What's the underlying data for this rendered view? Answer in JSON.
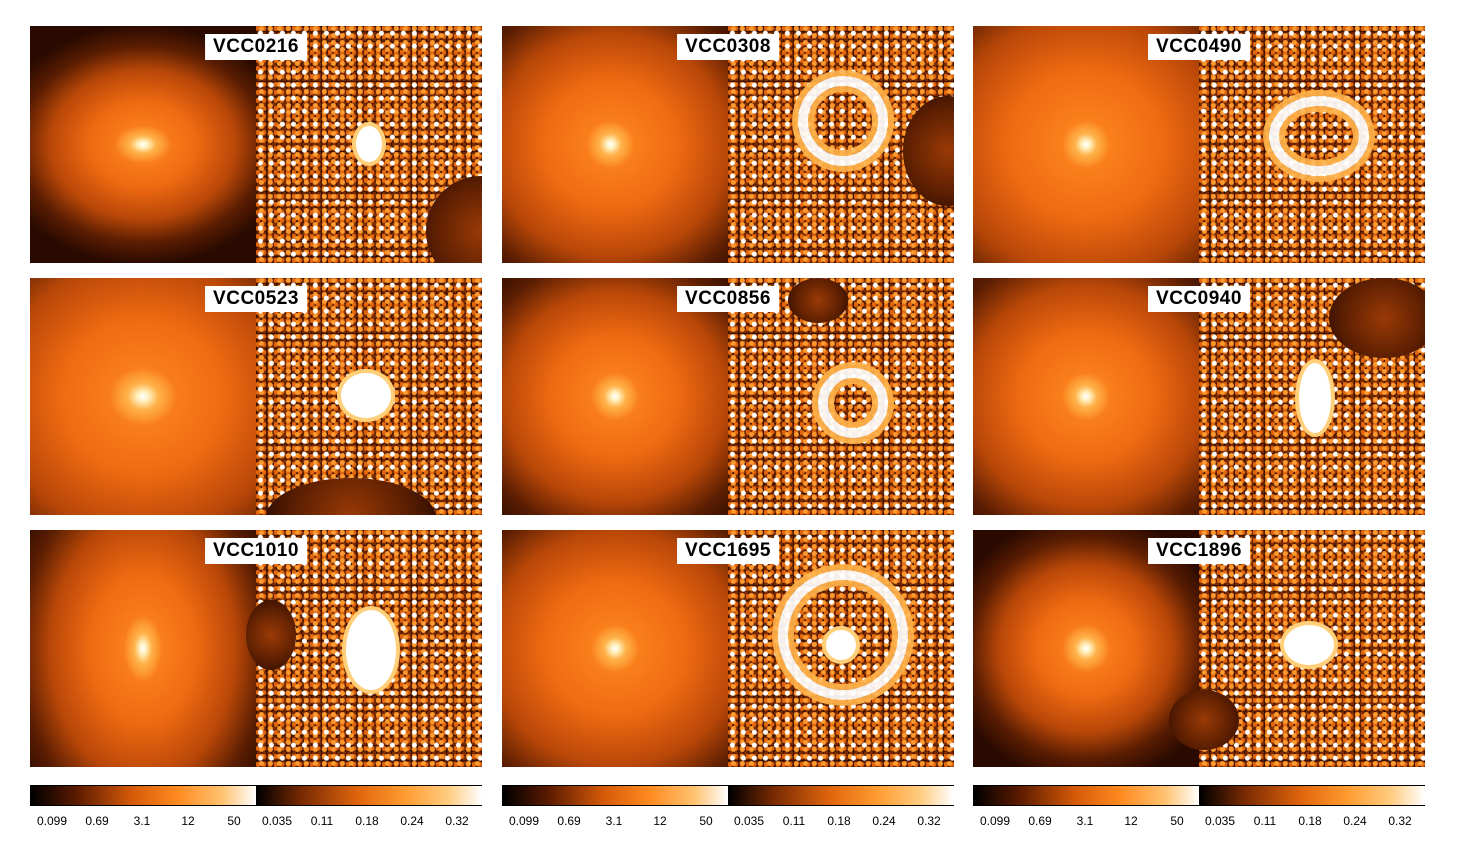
{
  "panels": [
    {
      "id": "p1",
      "label": "VCC0216"
    },
    {
      "id": "p2",
      "label": "VCC0308"
    },
    {
      "id": "p3",
      "label": "VCC0490"
    },
    {
      "id": "p4",
      "label": "VCC0523"
    },
    {
      "id": "p5",
      "label": "VCC0856"
    },
    {
      "id": "p6",
      "label": "VCC0940"
    },
    {
      "id": "p7",
      "label": "VCC1010"
    },
    {
      "id": "p8",
      "label": "VCC1695"
    },
    {
      "id": "p9",
      "label": "VCC1896"
    }
  ],
  "colorbars": {
    "model_ticks": [
      "0.099",
      "0.69",
      "3.1",
      "12",
      "50"
    ],
    "residual_ticks": [
      "0.035",
      "0.11",
      "0.18",
      "0.24",
      "0.32"
    ]
  }
}
